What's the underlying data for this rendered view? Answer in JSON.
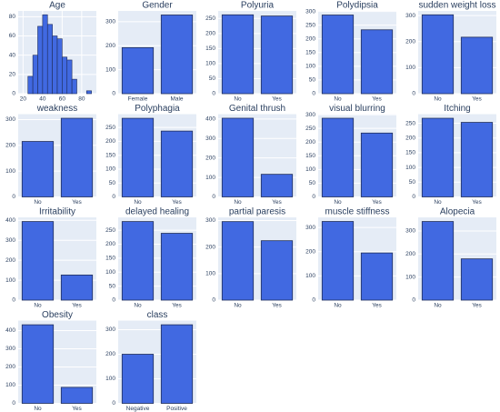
{
  "chart_data": [
    {
      "type": "histogram",
      "title": "Age",
      "bins": [
        25,
        30,
        35,
        40,
        45,
        50,
        55,
        60,
        65,
        70,
        75,
        80,
        85,
        90
      ],
      "values": [
        18,
        40,
        70,
        82,
        72,
        60,
        57,
        38,
        35,
        15,
        0,
        0,
        3
      ],
      "xlim": [
        15,
        95
      ],
      "xticks": [
        20,
        40,
        60,
        80
      ],
      "ylim": [
        0,
        86
      ],
      "yticks": [
        0,
        20,
        40,
        60,
        80
      ],
      "color": "#4169e1"
    },
    {
      "type": "bar",
      "title": "Gender",
      "categories": [
        "Female",
        "Male"
      ],
      "values": [
        192,
        328
      ],
      "ylim": [
        0,
        345
      ],
      "yticks": [
        0,
        100,
        200,
        300
      ],
      "color": "#4169e1"
    },
    {
      "type": "bar",
      "title": "Polyuria",
      "categories": [
        "No",
        "Yes"
      ],
      "values": [
        262,
        258
      ],
      "ylim": [
        0,
        275
      ],
      "yticks": [
        0,
        50,
        100,
        150,
        200,
        250
      ],
      "color": "#4169e1"
    },
    {
      "type": "bar",
      "title": "Polydipsia",
      "categories": [
        "No",
        "Yes"
      ],
      "values": [
        287,
        233
      ],
      "ylim": [
        0,
        302
      ],
      "yticks": [
        0,
        50,
        100,
        150,
        200,
        250,
        300
      ],
      "color": "#4169e1"
    },
    {
      "type": "bar",
      "title": "sudden weight loss",
      "categories": [
        "No",
        "Yes"
      ],
      "values": [
        303,
        217
      ],
      "ylim": [
        0,
        318
      ],
      "yticks": [
        0,
        100,
        200,
        300
      ],
      "color": "#4169e1"
    },
    {
      "type": "bar",
      "title": "weakness",
      "categories": [
        "No",
        "Yes"
      ],
      "values": [
        215,
        305
      ],
      "ylim": [
        0,
        321
      ],
      "yticks": [
        0,
        100,
        200,
        300
      ],
      "color": "#4169e1"
    },
    {
      "type": "bar",
      "title": "Polyphagia",
      "categories": [
        "No",
        "Yes"
      ],
      "values": [
        283,
        237
      ],
      "ylim": [
        0,
        298
      ],
      "yticks": [
        0,
        50,
        100,
        150,
        200,
        250
      ],
      "color": "#4169e1"
    },
    {
      "type": "bar",
      "title": "Genital thrush",
      "categories": [
        "No",
        "Yes"
      ],
      "values": [
        404,
        116
      ],
      "ylim": [
        0,
        425
      ],
      "yticks": [
        0,
        100,
        200,
        300,
        400
      ],
      "color": "#4169e1"
    },
    {
      "type": "bar",
      "title": "visual blurring",
      "categories": [
        "No",
        "Yes"
      ],
      "values": [
        287,
        233
      ],
      "ylim": [
        0,
        302
      ],
      "yticks": [
        0,
        50,
        100,
        150,
        200,
        250,
        300
      ],
      "color": "#4169e1"
    },
    {
      "type": "bar",
      "title": "Itching",
      "categories": [
        "No",
        "Yes"
      ],
      "values": [
        267,
        253
      ],
      "ylim": [
        0,
        281
      ],
      "yticks": [
        0,
        50,
        100,
        150,
        200,
        250
      ],
      "color": "#4169e1"
    },
    {
      "type": "bar",
      "title": "Irritability",
      "categories": [
        "No",
        "Yes"
      ],
      "values": [
        394,
        126
      ],
      "ylim": [
        0,
        415
      ],
      "yticks": [
        0,
        100,
        200,
        300,
        400
      ],
      "color": "#4169e1"
    },
    {
      "type": "bar",
      "title": "delayed healing",
      "categories": [
        "No",
        "Yes"
      ],
      "values": [
        281,
        239
      ],
      "ylim": [
        0,
        296
      ],
      "yticks": [
        0,
        50,
        100,
        150,
        200,
        250
      ],
      "color": "#4169e1"
    },
    {
      "type": "bar",
      "title": "partial paresis",
      "categories": [
        "No",
        "Yes"
      ],
      "values": [
        296,
        224
      ],
      "ylim": [
        0,
        312
      ],
      "yticks": [
        0,
        100,
        200,
        300
      ],
      "color": "#4169e1"
    },
    {
      "type": "bar",
      "title": "muscle stiffness",
      "categories": [
        "No",
        "Yes"
      ],
      "values": [
        325,
        195
      ],
      "ylim": [
        0,
        342
      ],
      "yticks": [
        0,
        100,
        200,
        300
      ],
      "color": "#4169e1"
    },
    {
      "type": "bar",
      "title": "Alopecia",
      "categories": [
        "No",
        "Yes"
      ],
      "values": [
        341,
        179
      ],
      "ylim": [
        0,
        359
      ],
      "yticks": [
        0,
        100,
        200,
        300
      ],
      "color": "#4169e1"
    },
    {
      "type": "bar",
      "title": "Obesity",
      "categories": [
        "No",
        "Yes"
      ],
      "values": [
        432,
        88
      ],
      "ylim": [
        0,
        455
      ],
      "yticks": [
        0,
        100,
        200,
        300,
        400
      ],
      "color": "#4169e1"
    },
    {
      "type": "bar",
      "title": "class",
      "categories": [
        "Negative",
        "Positive"
      ],
      "values": [
        200,
        320
      ],
      "ylim": [
        0,
        337
      ],
      "yticks": [
        0,
        100,
        200,
        300
      ],
      "color": "#4169e1"
    }
  ]
}
